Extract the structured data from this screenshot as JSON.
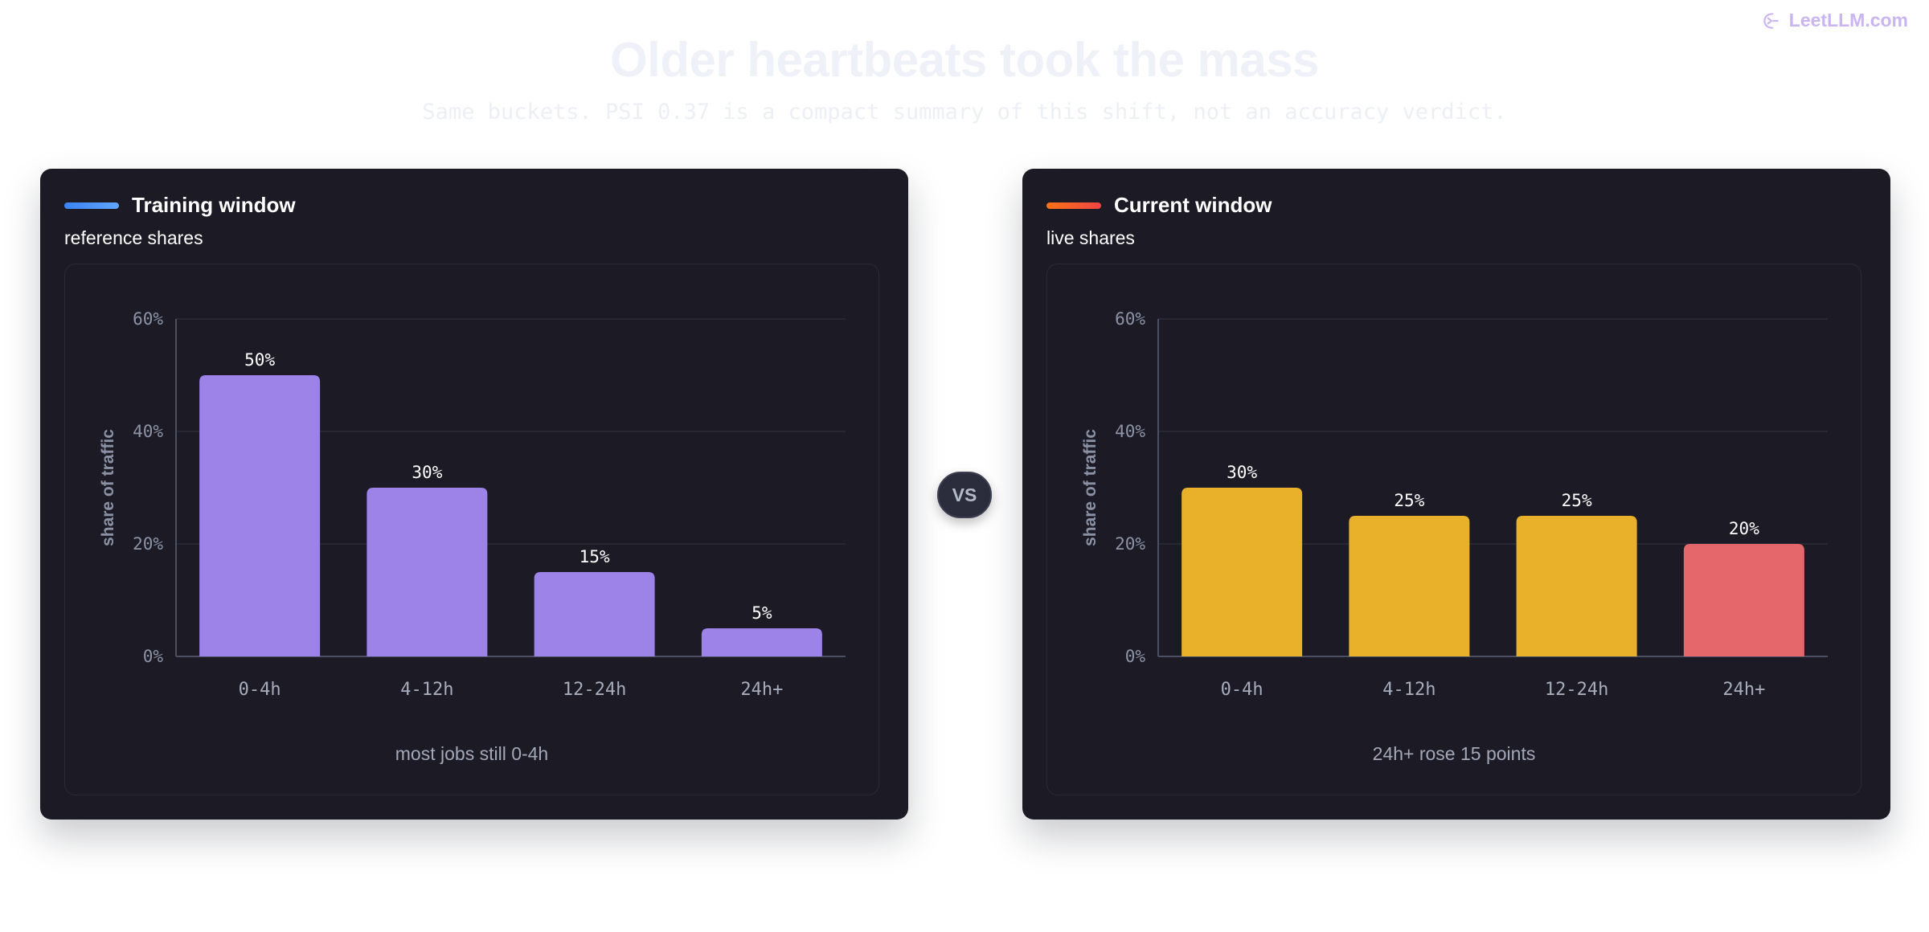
{
  "brand": {
    "name": "LeetLLM.com",
    "icon": "leetllm-logo-icon",
    "color": "#c8b5f2"
  },
  "page": {
    "title": "Older heartbeats took the mass",
    "subtitle": "Same buckets. PSI 0.37 is a compact summary of this shift, not an accuracy verdict."
  },
  "vs_label": "VS",
  "panels": [
    {
      "title": "Training window",
      "subtitle": "reference shares",
      "accent": [
        "#3b82f6",
        "#60a5fa"
      ],
      "note": "most jobs still 0-4h"
    },
    {
      "title": "Current window",
      "subtitle": "live shares",
      "accent": [
        "#f97316",
        "#ef4444"
      ],
      "note": "24h+ rose 15 points"
    }
  ],
  "chart_data": [
    {
      "type": "bar",
      "categories": [
        "0-4h",
        "4-12h",
        "12-24h",
        "24h+"
      ],
      "values": [
        50,
        30,
        15,
        5
      ],
      "value_labels": [
        "50%",
        "30%",
        "15%",
        "5%"
      ],
      "bar_colors": [
        "#9d82e8",
        "#9d82e8",
        "#9d82e8",
        "#9d82e8"
      ],
      "ylabel": "share of traffic",
      "ylim": [
        0,
        60
      ],
      "yticks": [
        0,
        20,
        40,
        60
      ],
      "ytick_labels": [
        "0%",
        "20%",
        "40%",
        "60%"
      ],
      "grid": true
    },
    {
      "type": "bar",
      "categories": [
        "0-4h",
        "4-12h",
        "12-24h",
        "24h+"
      ],
      "values": [
        30,
        25,
        25,
        20
      ],
      "value_labels": [
        "30%",
        "25%",
        "25%",
        "20%"
      ],
      "bar_colors": [
        "#e8b129",
        "#e8b129",
        "#e8b129",
        "#e5676b"
      ],
      "ylabel": "share of traffic",
      "ylim": [
        0,
        60
      ],
      "yticks": [
        0,
        20,
        40,
        60
      ],
      "ytick_labels": [
        "0%",
        "20%",
        "40%",
        "60%"
      ],
      "grid": true
    }
  ]
}
